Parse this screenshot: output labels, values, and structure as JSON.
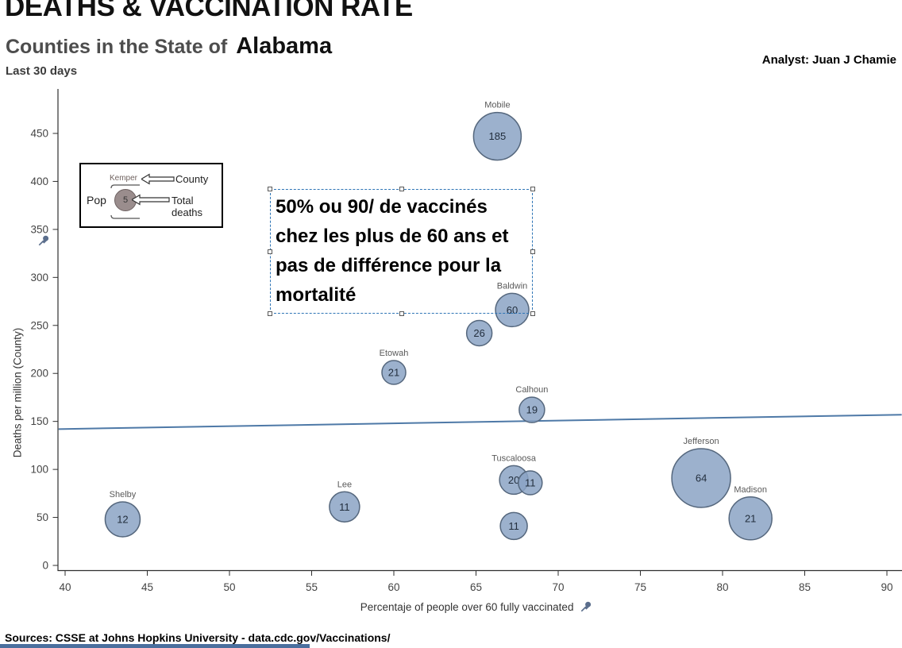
{
  "header": {
    "title": "DEATHS & VACCINATION RATE",
    "subtitle_prefix": "Counties in the State of",
    "subtitle_state": "Alabama",
    "period": "Last 30 days",
    "analyst": "Analyst: Juan J Chamie"
  },
  "annotation": {
    "text": "50% ou 90/ de vaccinés chez les plus de 60 ans et pas de différence pour la mortalité",
    "lines": [
      "50% ou 90/ de vaccinés",
      "chez les plus de 60 ans et",
      "pas de différence pour la",
      "mortalité"
    ]
  },
  "legend": {
    "county_example": "Kemper",
    "county_label": "County",
    "pop_label": "Pop",
    "deaths_example": "5",
    "deaths_label": "Total deaths"
  },
  "footer": {
    "sources": "Sources: CSSE at Johns Hopkins University - data.cdc.gov/Vaccinations/"
  },
  "icons": {
    "x_axis_pin": "pushpin-icon",
    "y_axis_pin": "pushpin-icon"
  },
  "colors": {
    "bubble_fill": "#8ba3c4",
    "bubble_stroke": "#55677d",
    "trend": "#4e79a7",
    "selection_dash": "#2e75b6",
    "legend_circle": "#9a8d8d",
    "bottom_bar": "#4a6f9e",
    "axis": "#2f2f2f"
  },
  "chart_data": {
    "type": "scatter",
    "title": "DEATHS & VACCINATION RATE — Counties in the State of Alabama (Last 30 days)",
    "xlabel": "Percentaje of people over 60 fully vaccinated",
    "ylabel": "Deaths per million (County)",
    "xlim": [
      40,
      90
    ],
    "ylim": [
      0,
      475
    ],
    "x_ticks": [
      40,
      45,
      50,
      55,
      60,
      65,
      70,
      75,
      80,
      85,
      90
    ],
    "y_ticks": [
      0,
      50,
      100,
      150,
      200,
      250,
      300,
      350,
      400,
      450
    ],
    "grid": false,
    "size_encoding": "Pop (county population)",
    "label_encoding": "Total deaths",
    "points": [
      {
        "county": "Mobile",
        "x": 66.3,
        "y": 447,
        "deaths": 185,
        "r": 30
      },
      {
        "county": "Baldwin",
        "x": 67.2,
        "y": 266,
        "deaths": 60,
        "r": 21
      },
      {
        "county": "",
        "x": 65.2,
        "y": 242,
        "deaths": 26,
        "r": 16
      },
      {
        "county": "Etowah",
        "x": 60.0,
        "y": 201,
        "deaths": 21,
        "r": 15
      },
      {
        "county": "Calhoun",
        "x": 68.4,
        "y": 162,
        "deaths": 19,
        "r": 16
      },
      {
        "county": "Tuscaloosa",
        "x": 67.3,
        "y": 89,
        "deaths": 20,
        "r": 18
      },
      {
        "county": "",
        "x": 68.3,
        "y": 86,
        "deaths": 11,
        "r": 15
      },
      {
        "county": "",
        "x": 67.3,
        "y": 41,
        "deaths": 11,
        "r": 17
      },
      {
        "county": "Jefferson",
        "x": 78.7,
        "y": 91,
        "deaths": 64,
        "r": 37
      },
      {
        "county": "Madison",
        "x": 81.7,
        "y": 49,
        "deaths": 21,
        "r": 27
      },
      {
        "county": "Lee",
        "x": 57.0,
        "y": 61,
        "deaths": 11,
        "r": 19
      },
      {
        "county": "Shelby",
        "x": 43.5,
        "y": 48,
        "deaths": 12,
        "r": 22
      }
    ],
    "trend_line": {
      "x": [
        39.6,
        90.9
      ],
      "y": [
        142,
        157
      ]
    }
  }
}
